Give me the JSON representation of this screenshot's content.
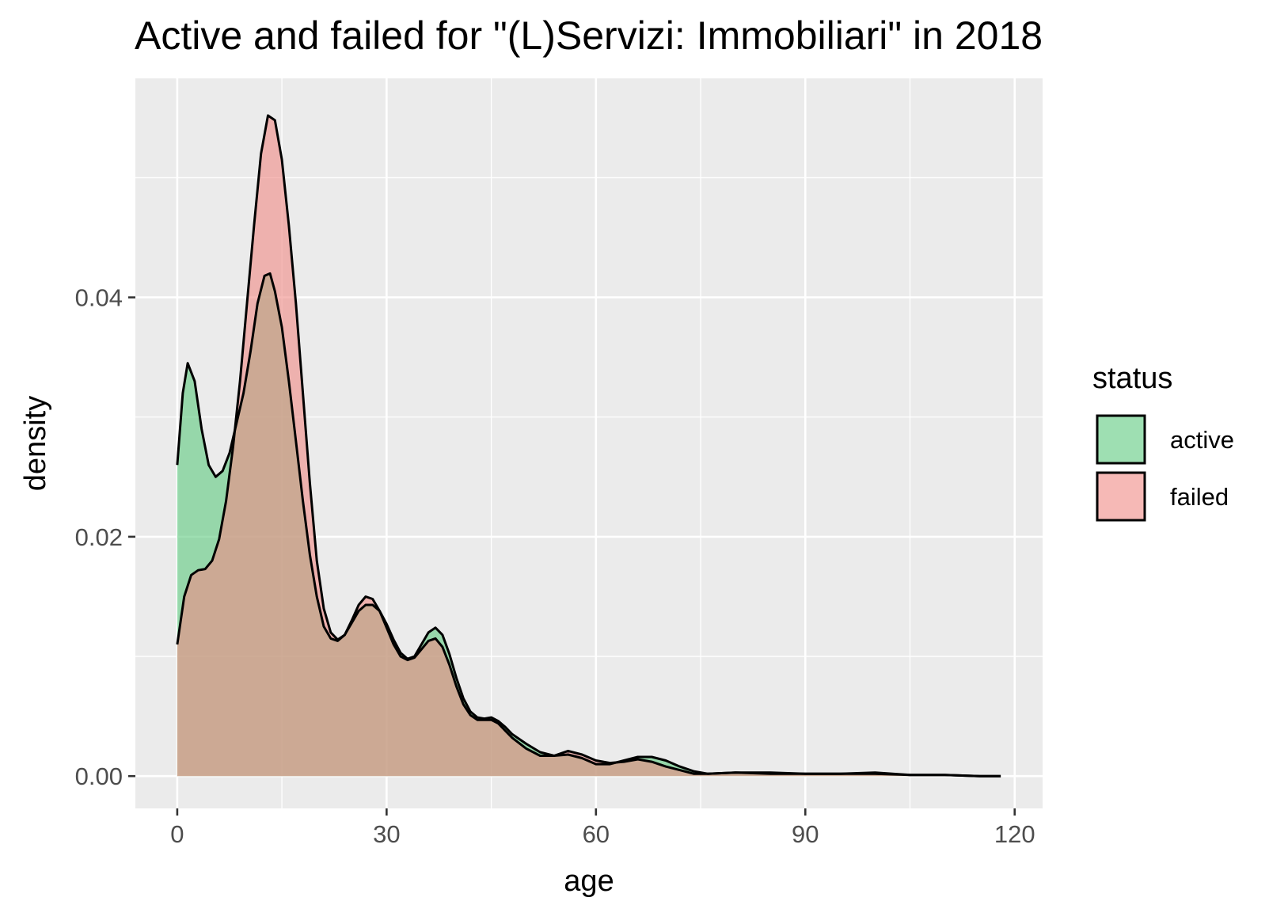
{
  "chart_data": {
    "type": "area",
    "subtype": "density",
    "title": "Active and failed for \"(L)Servizi: Immobiliari\" in 2018",
    "xlabel": "age",
    "ylabel": "density",
    "xlim": [
      -6,
      124
    ],
    "ylim": [
      -0.0027,
      0.0583
    ],
    "x_ticks": [
      0,
      30,
      60,
      90,
      120
    ],
    "x_tick_labels": [
      "0",
      "30",
      "60",
      "90",
      "120"
    ],
    "y_ticks": [
      0.0,
      0.02,
      0.04
    ],
    "y_tick_labels": [
      "0.00",
      "0.02",
      "0.04"
    ],
    "grid": true,
    "legend": {
      "title": "status",
      "position": "right"
    },
    "colors": {
      "panel": "#ebebeb",
      "active": "#5ec97f",
      "failed": "#f08a85",
      "outline": "#000000"
    },
    "fill_opacity": 0.6,
    "series": [
      {
        "name": "active",
        "color": "#5ec97f",
        "points": [
          [
            0,
            0.026
          ],
          [
            0.8,
            0.032
          ],
          [
            1.5,
            0.0345
          ],
          [
            2.5,
            0.033
          ],
          [
            3.5,
            0.029
          ],
          [
            4.5,
            0.026
          ],
          [
            5.5,
            0.025
          ],
          [
            6.5,
            0.0255
          ],
          [
            7.5,
            0.027
          ],
          [
            8.5,
            0.0295
          ],
          [
            9.5,
            0.032
          ],
          [
            10.5,
            0.0355
          ],
          [
            11.5,
            0.0395
          ],
          [
            12.5,
            0.0418
          ],
          [
            13.3,
            0.042
          ],
          [
            14,
            0.0405
          ],
          [
            15,
            0.0375
          ],
          [
            16,
            0.033
          ],
          [
            17,
            0.028
          ],
          [
            18,
            0.023
          ],
          [
            19,
            0.0185
          ],
          [
            20,
            0.015
          ],
          [
            21,
            0.0125
          ],
          [
            22,
            0.0115
          ],
          [
            23,
            0.0113
          ],
          [
            24,
            0.0118
          ],
          [
            25,
            0.0128
          ],
          [
            26,
            0.0138
          ],
          [
            27,
            0.0143
          ],
          [
            28,
            0.0143
          ],
          [
            29,
            0.0138
          ],
          [
            30,
            0.0127
          ],
          [
            31,
            0.0114
          ],
          [
            32,
            0.0103
          ],
          [
            33,
            0.0098
          ],
          [
            34,
            0.01
          ],
          [
            35,
            0.011
          ],
          [
            36,
            0.012
          ],
          [
            37,
            0.0124
          ],
          [
            38,
            0.0118
          ],
          [
            39,
            0.0102
          ],
          [
            40,
            0.0082
          ],
          [
            41,
            0.0065
          ],
          [
            42,
            0.0054
          ],
          [
            43,
            0.0049
          ],
          [
            44,
            0.0048
          ],
          [
            45,
            0.0049
          ],
          [
            46,
            0.0046
          ],
          [
            47,
            0.0041
          ],
          [
            48,
            0.0035
          ],
          [
            50,
            0.0027
          ],
          [
            52,
            0.002
          ],
          [
            54,
            0.0017
          ],
          [
            56,
            0.0018
          ],
          [
            58,
            0.0015
          ],
          [
            60,
            0.001
          ],
          [
            62,
            0.001
          ],
          [
            64,
            0.0013
          ],
          [
            66,
            0.0016
          ],
          [
            68,
            0.0016
          ],
          [
            70,
            0.0013
          ],
          [
            72,
            0.0008
          ],
          [
            74,
            0.0004
          ],
          [
            76,
            0.0002
          ],
          [
            80,
            0.0003
          ],
          [
            85,
            0.0002
          ],
          [
            90,
            0.0002
          ],
          [
            95,
            0.0002
          ],
          [
            100,
            0.0002
          ],
          [
            105,
            0.0001
          ],
          [
            110,
            0.0001
          ],
          [
            115,
            0.0
          ],
          [
            118,
            0.0
          ]
        ]
      },
      {
        "name": "failed",
        "color": "#f08a85",
        "points": [
          [
            0,
            0.011
          ],
          [
            1,
            0.015
          ],
          [
            2,
            0.0168
          ],
          [
            3,
            0.0172
          ],
          [
            4,
            0.0173
          ],
          [
            5,
            0.018
          ],
          [
            6,
            0.0198
          ],
          [
            7,
            0.023
          ],
          [
            8,
            0.0275
          ],
          [
            9,
            0.033
          ],
          [
            10,
            0.0395
          ],
          [
            11,
            0.046
          ],
          [
            12,
            0.052
          ],
          [
            13,
            0.0552
          ],
          [
            14,
            0.0548
          ],
          [
            15,
            0.0515
          ],
          [
            16,
            0.046
          ],
          [
            17,
            0.0395
          ],
          [
            18,
            0.032
          ],
          [
            19,
            0.0245
          ],
          [
            20,
            0.018
          ],
          [
            21,
            0.014
          ],
          [
            22,
            0.012
          ],
          [
            23,
            0.0114
          ],
          [
            24,
            0.0118
          ],
          [
            25,
            0.013
          ],
          [
            26,
            0.0143
          ],
          [
            27,
            0.015
          ],
          [
            28,
            0.0148
          ],
          [
            29,
            0.0138
          ],
          [
            30,
            0.0124
          ],
          [
            31,
            0.011
          ],
          [
            32,
            0.01
          ],
          [
            33,
            0.0097
          ],
          [
            34,
            0.0099
          ],
          [
            35,
            0.0106
          ],
          [
            36,
            0.0113
          ],
          [
            37,
            0.0115
          ],
          [
            38,
            0.0108
          ],
          [
            39,
            0.0093
          ],
          [
            40,
            0.0075
          ],
          [
            41,
            0.006
          ],
          [
            42,
            0.0051
          ],
          [
            43,
            0.0047
          ],
          [
            44,
            0.0047
          ],
          [
            45,
            0.0047
          ],
          [
            46,
            0.0044
          ],
          [
            47,
            0.0038
          ],
          [
            48,
            0.0032
          ],
          [
            50,
            0.0023
          ],
          [
            52,
            0.0017
          ],
          [
            54,
            0.0017
          ],
          [
            56,
            0.0021
          ],
          [
            58,
            0.0018
          ],
          [
            60,
            0.0013
          ],
          [
            62,
            0.0011
          ],
          [
            64,
            0.0012
          ],
          [
            66,
            0.0014
          ],
          [
            68,
            0.0012
          ],
          [
            70,
            0.0008
          ],
          [
            72,
            0.0005
          ],
          [
            74,
            0.0002
          ],
          [
            76,
            0.0002
          ],
          [
            80,
            0.0003
          ],
          [
            85,
            0.0003
          ],
          [
            90,
            0.0002
          ],
          [
            95,
            0.0002
          ],
          [
            100,
            0.0003
          ],
          [
            105,
            0.0001
          ],
          [
            110,
            0.0001
          ],
          [
            115,
            0.0
          ],
          [
            118,
            0.0
          ]
        ]
      }
    ]
  }
}
